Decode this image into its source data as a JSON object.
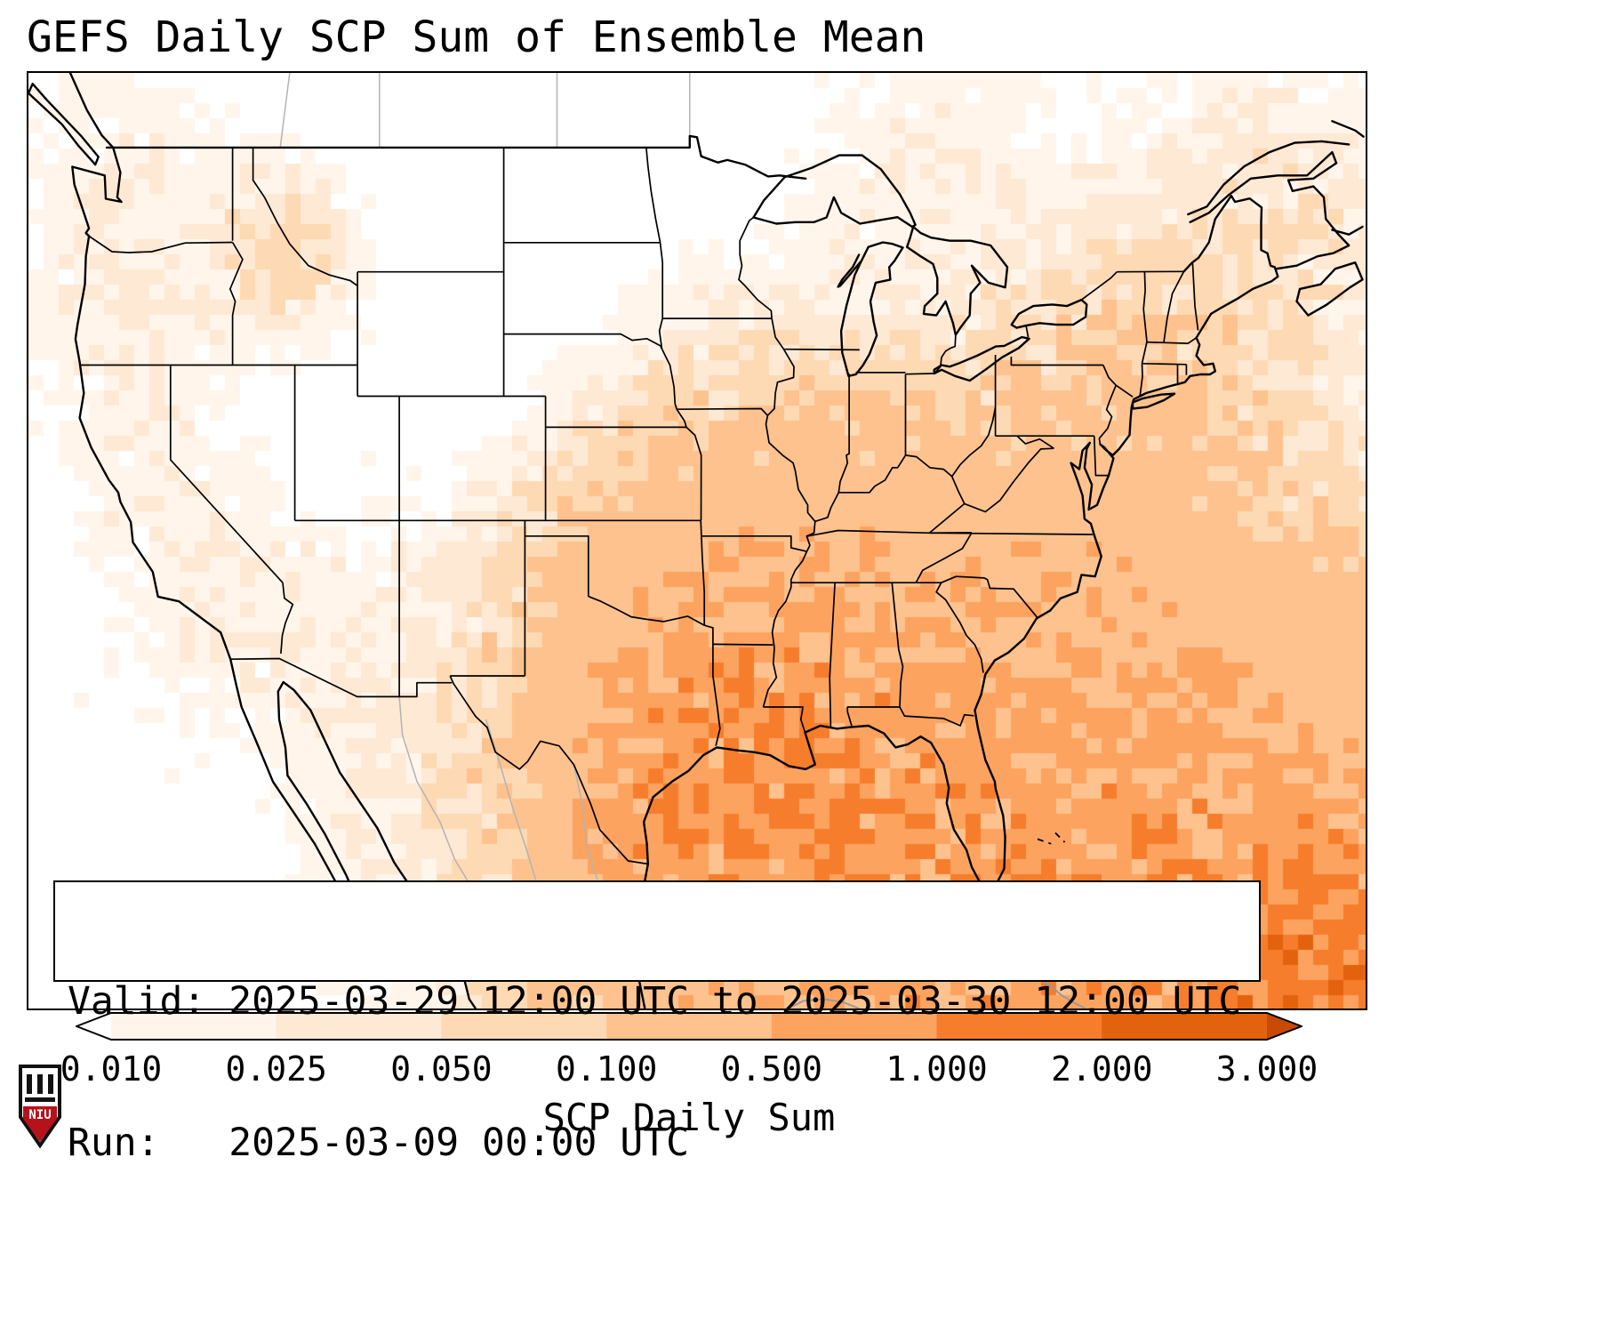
{
  "title": "GEFS Daily SCP Sum of Ensemble Mean",
  "info_box": {
    "line1": "Valid: 2025-03-29 12:00 UTC to 2025-03-30 12:00 UTC",
    "line2": "Run:   2025-03-09 00:00 UTC"
  },
  "colorbar": {
    "label": "SCP Daily Sum",
    "ticks": [
      "0.010",
      "0.025",
      "0.050",
      "0.100",
      "0.500",
      "1.000",
      "2.000",
      "3.000"
    ],
    "levels": [
      0.01,
      0.025,
      0.05,
      0.1,
      0.5,
      1.0,
      2.0,
      3.0
    ],
    "segment_colors": [
      "#fff5eb",
      "#fee9d4",
      "#fdd9b4",
      "#fdc28e",
      "#fda360",
      "#f67d2c",
      "#e3620d"
    ],
    "under_color": "#ffffff",
    "over_color": "#c84a02"
  },
  "logo": {
    "text": "NIU",
    "color": "#b5121b"
  },
  "chart_data": {
    "type": "heatmap",
    "title": "GEFS Daily SCP Sum of Ensemble Mean",
    "colorbar_label": "SCP Daily Sum",
    "color_levels": [
      0.01,
      0.025,
      0.05,
      0.1,
      0.5,
      1.0,
      2.0,
      3.0
    ],
    "colormap": "white-to-orange (Oranges), pointed under/over arrows",
    "valid": "2025-03-29 12:00 UTC to 2025-03-30 12:00 UTC",
    "run": "2025-03-09 00:00 UTC",
    "extent": "Continental United States with southern Canada, northern Mexico, Gulf of Mexico, western Atlantic and Cuba",
    "approx_values_by_region": [
      {
        "region": "Gulf of Mexico south of Louisiana",
        "scp_daily_sum": 0.5
      },
      {
        "region": "Louisiana / Mississippi / Alabama",
        "scp_daily_sum": 0.25
      },
      {
        "region": "Florida and Southeast coast",
        "scp_daily_sum": 0.2
      },
      {
        "region": "Eastern Texas and Gulf coastal plain",
        "scp_daily_sum": 0.15
      },
      {
        "region": "Tennessee Valley",
        "scp_daily_sum": 0.15
      },
      {
        "region": "Western Atlantic / Bahamas / Cuba",
        "scp_daily_sum": 0.3
      },
      {
        "region": "Caribbean, lower-right corner of map",
        "scp_daily_sum": 1.5
      },
      {
        "region": "Missouri / Illinois / Ohio Valley",
        "scp_daily_sum": 0.05
      },
      {
        "region": "Mid-Atlantic coastal plain",
        "scp_daily_sum": 0.08
      },
      {
        "region": "Northeast US and New England",
        "scp_daily_sum": 0.02
      },
      {
        "region": "Northern and central Plains",
        "scp_daily_sum": 0.0
      },
      {
        "region": "Interior West / Great Basin",
        "scp_daily_sum": 0.01
      },
      {
        "region": "Idaho / western Montana spot",
        "scp_daily_sum": 0.06
      },
      {
        "region": "Pacific Northwest coast",
        "scp_daily_sum": 0.02
      }
    ]
  }
}
